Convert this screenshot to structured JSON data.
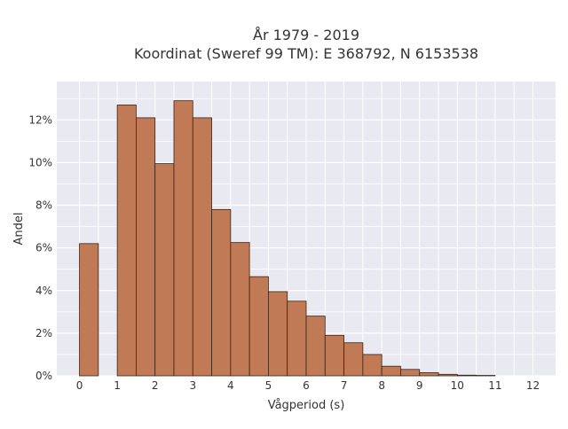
{
  "chart_data": {
    "type": "bar",
    "title_line1": "År 1979 - 2019",
    "title_line2": "Koordinat (Sweref 99 TM): E 368792, N 6153538",
    "xlabel": "Vågperiod (s)",
    "ylabel": "Andel",
    "xlim": [
      -0.6,
      12.6
    ],
    "ylim": [
      0,
      13.8
    ],
    "x_ticks": [
      0,
      1,
      2,
      3,
      4,
      5,
      6,
      7,
      8,
      9,
      10,
      11,
      12
    ],
    "x_tick_labels": [
      "0",
      "1",
      "2",
      "3",
      "4",
      "5",
      "6",
      "7",
      "8",
      "9",
      "10",
      "11",
      "12"
    ],
    "y_ticks": [
      0,
      2,
      4,
      6,
      8,
      10,
      12
    ],
    "y_tick_labels": [
      "0%",
      "2%",
      "4%",
      "6%",
      "8%",
      "10%",
      "12%"
    ],
    "grid": true,
    "bar_color": "#c07a55",
    "bar_edge_color": "#3a2418",
    "plot_background": "#e9e9f1",
    "bars": [
      {
        "x0": 0.0,
        "x1": 0.5,
        "value": 6.2
      },
      {
        "x0": 1.0,
        "x1": 1.5,
        "value": 12.7
      },
      {
        "x0": 1.5,
        "x1": 2.0,
        "value": 12.1
      },
      {
        "x0": 2.0,
        "x1": 2.5,
        "value": 9.95
      },
      {
        "x0": 2.5,
        "x1": 3.0,
        "value": 12.9
      },
      {
        "x0": 3.0,
        "x1": 3.5,
        "value": 12.1
      },
      {
        "x0": 3.5,
        "x1": 4.0,
        "value": 7.8
      },
      {
        "x0": 4.0,
        "x1": 4.5,
        "value": 6.25
      },
      {
        "x0": 4.5,
        "x1": 5.0,
        "value": 4.65
      },
      {
        "x0": 5.0,
        "x1": 5.5,
        "value": 3.95
      },
      {
        "x0": 5.5,
        "x1": 6.0,
        "value": 3.5
      },
      {
        "x0": 6.0,
        "x1": 6.5,
        "value": 2.8
      },
      {
        "x0": 6.5,
        "x1": 7.0,
        "value": 1.9
      },
      {
        "x0": 7.0,
        "x1": 7.5,
        "value": 1.55
      },
      {
        "x0": 7.5,
        "x1": 8.0,
        "value": 1.0
      },
      {
        "x0": 8.0,
        "x1": 8.5,
        "value": 0.45
      },
      {
        "x0": 8.5,
        "x1": 9.0,
        "value": 0.3
      },
      {
        "x0": 9.0,
        "x1": 9.5,
        "value": 0.15
      },
      {
        "x0": 9.5,
        "x1": 10.0,
        "value": 0.07
      },
      {
        "x0": 10.0,
        "x1": 10.5,
        "value": 0.03
      },
      {
        "x0": 10.5,
        "x1": 11.0,
        "value": 0.02
      }
    ]
  }
}
